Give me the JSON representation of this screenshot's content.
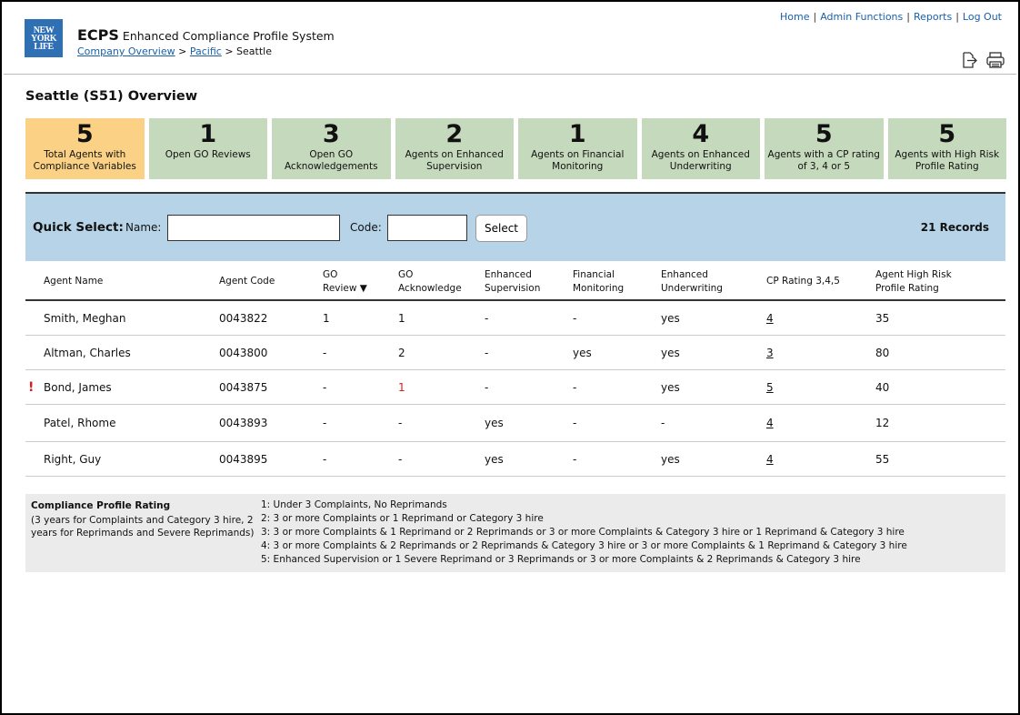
{
  "app": {
    "abbr": "ECPS",
    "name": "Enhanced Compliance Profile System",
    "logo_lines": [
      "NEW",
      "YORK",
      "LIFE"
    ]
  },
  "breadcrumb": {
    "items": [
      "Company Overview",
      "Pacific"
    ],
    "separator": ">",
    "current": "Seattle"
  },
  "topnav": {
    "items": [
      "Home",
      "Admin Functions",
      "Reports",
      "Log Out"
    ],
    "separator": "|"
  },
  "page_title": "Seattle (S51) Overview",
  "tiles": [
    {
      "value": "5",
      "label": "Total Agents with Compliance Variables"
    },
    {
      "value": "1",
      "label": "Open GO Reviews"
    },
    {
      "value": "3",
      "label": "Open GO Acknowledgements"
    },
    {
      "value": "2",
      "label": "Agents on Enhanced Supervision"
    },
    {
      "value": "1",
      "label": "Agents on Financial Monitoring"
    },
    {
      "value": "4",
      "label": "Agents on Enhanced Underwriting"
    },
    {
      "value": "5",
      "label": "Agents with a CP rating of 3, 4 or 5"
    },
    {
      "value": "5",
      "label": "Agents with High Risk Profile Rating"
    }
  ],
  "quick_select": {
    "title": "Quick Select:",
    "name_label": "Name:",
    "name_value": "",
    "code_label": "Code:",
    "code_value": "",
    "button": "Select",
    "records": "21 Records"
  },
  "table": {
    "headers": [
      {
        "line1": "Agent Name",
        "line2": ""
      },
      {
        "line1": "Agent Code",
        "line2": ""
      },
      {
        "line1": "GO",
        "line2": "Review ▼"
      },
      {
        "line1": "GO",
        "line2": "Acknowledge"
      },
      {
        "line1": "Enhanced",
        "line2": "Supervision"
      },
      {
        "line1": "Financial",
        "line2": "Monitoring"
      },
      {
        "line1": "Enhanced",
        "line2": "Underwriting"
      },
      {
        "line1": "CP Rating 3,4,5",
        "line2": ""
      },
      {
        "line1": "Agent High Risk",
        "line2": "Profile Rating"
      }
    ],
    "alert_glyph": "!",
    "rows": [
      {
        "alert": false,
        "cells": [
          "Smith, Meghan",
          "0043822",
          "1",
          "1",
          "-",
          "-",
          "yes",
          "4",
          "35"
        ]
      },
      {
        "alert": false,
        "cells": [
          "Altman, Charles",
          "0043800",
          "-",
          "2",
          "-",
          "yes",
          "yes",
          "3",
          "80"
        ]
      },
      {
        "alert": true,
        "cells": [
          "Bond, James",
          "0043875",
          "-",
          "1",
          "-",
          "-",
          "yes",
          "5",
          "40"
        ]
      },
      {
        "alert": false,
        "cells": [
          "Patel, Rhome",
          "0043893",
          "-",
          "-",
          "yes",
          "-",
          "-",
          "4",
          "12"
        ]
      },
      {
        "alert": false,
        "cells": [
          "Right, Guy",
          "0043895",
          "-",
          "-",
          "yes",
          "-",
          "yes",
          "4",
          "55"
        ]
      }
    ]
  },
  "legend": {
    "title": "Compliance Profile Rating",
    "note": "(3 years for Complaints and Category 3 hire, 2 years for Reprimands and Severe Reprimands)",
    "items": [
      "1: Under 3 Complaints, No Reprimands",
      "2: 3 or more Complaints or 1 Reprimand or Category 3 hire",
      "3: 3 or more Complaints & 1 Reprimand or 2 Reprimands or 3 or more Complaints & Category 3 hire or 1 Reprimand & Category 3 hire",
      "4: 3 or more Complaints & 2 Reprimands or 2 Reprimands & Category 3 hire or 3 or more Complaints & 1 Reprimand & Category 3 hire",
      "5: Enhanced Supervision or 1 Severe Reprimand or 3 Reprimands or 3 or more Complaints & 2 Reprimands & Category 3 hire"
    ]
  },
  "icons": {
    "export": "export-icon",
    "print": "print-icon"
  }
}
